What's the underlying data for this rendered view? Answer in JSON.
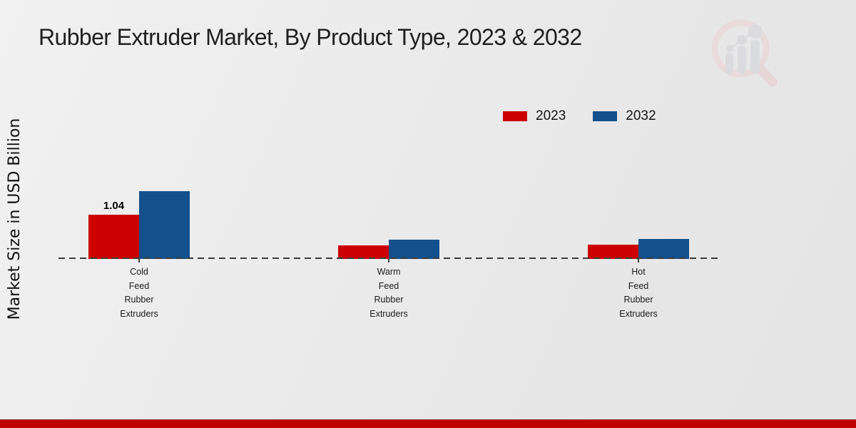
{
  "chart_data": {
    "type": "bar",
    "title": "Rubber Extruder Market, By Product Type, 2023 & 2032",
    "ylabel": "Market Size in USD Billion",
    "xlabel": "",
    "categories": [
      "Cold Feed Rubber Extruders",
      "Warm Feed Rubber Extruders",
      "Hot Feed Rubber Extruders"
    ],
    "series": [
      {
        "name": "2023",
        "color": "#cc0000",
        "values": [
          1.04,
          0.32,
          0.33
        ]
      },
      {
        "name": "2032",
        "color": "#14508c",
        "values": [
          1.58,
          0.45,
          0.46
        ]
      }
    ],
    "data_labels": [
      {
        "series": "2023",
        "category_index": 0,
        "text": "1.04"
      }
    ],
    "ylim": [
      0,
      1.8
    ],
    "grid": false,
    "axis_style": "dashed-baseline-only",
    "legend_position": "top-right"
  },
  "icons": {
    "watermark": "mrfr-magnifier-bar-chart-logo"
  },
  "colors": {
    "series_2023": "#cc0000",
    "series_2032": "#14508c",
    "baseline": "#3b3b3b",
    "footer_bar": "#c00000",
    "background": "#ececec",
    "watermark_ring": "#ecd2d2",
    "watermark_bars": "#d2d3d8"
  }
}
